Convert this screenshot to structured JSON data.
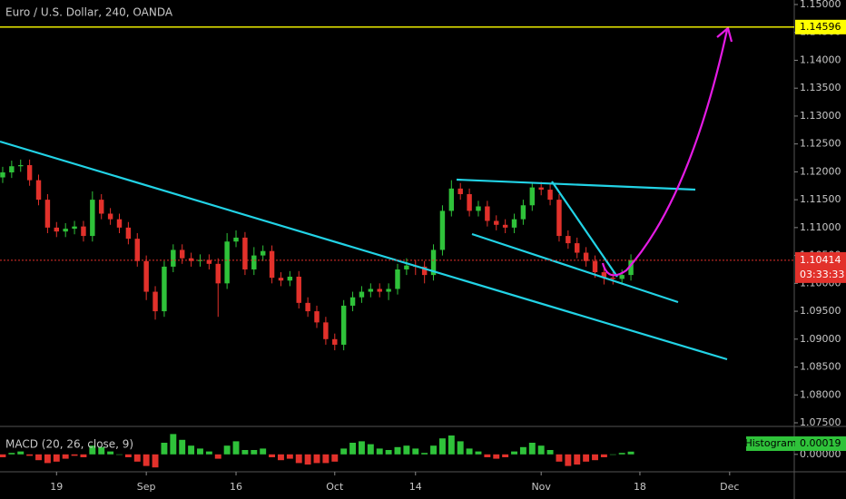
{
  "chart_data": [
    {
      "type": "candlestick",
      "title": "Euro / U.S. Dollar, 240, OANDA",
      "x": [
        -6,
        -5,
        -4,
        -3,
        -2,
        -1,
        0,
        1,
        2,
        3,
        4,
        5,
        6,
        7,
        8,
        9,
        10,
        11,
        12,
        13,
        14,
        15,
        16,
        17,
        18,
        19,
        20,
        21,
        22,
        23,
        24,
        25,
        26,
        27,
        28,
        29,
        30,
        31,
        32,
        33,
        34,
        35,
        36,
        37,
        38,
        39,
        40,
        41,
        42,
        43,
        44,
        45,
        46,
        47,
        48,
        49,
        50,
        51,
        52,
        53,
        54,
        55,
        56,
        57,
        58,
        59,
        60,
        61,
        62,
        63,
        64
      ],
      "open": [
        1.119,
        1.1199,
        1.121,
        1.1212,
        1.1185,
        1.115,
        1.11,
        1.1093,
        1.1098,
        1.1102,
        1.1085,
        1.115,
        1.1125,
        1.1115,
        1.11,
        1.108,
        1.104,
        1.0985,
        1.095,
        1.103,
        1.106,
        1.1045,
        1.104,
        1.1042,
        1.1035,
        1.1,
        1.1075,
        1.1082,
        1.1025,
        1.105,
        1.1058,
        1.101,
        1.1005,
        1.1012,
        1.0965,
        1.095,
        1.093,
        1.09,
        1.089,
        1.096,
        1.0975,
        1.0985,
        1.099,
        1.0985,
        1.099,
        1.1025,
        1.1032,
        1.103,
        1.1015,
        1.106,
        1.113,
        1.117,
        1.116,
        1.113,
        1.1138,
        1.1112,
        1.1105,
        1.11,
        1.1115,
        1.114,
        1.1172,
        1.1168,
        1.115,
        1.1085,
        1.1072,
        1.1055,
        1.104,
        1.102,
        1.101,
        1.1008,
        1.1015
      ],
      "high": [
        1.1209,
        1.122,
        1.1222,
        1.1222,
        1.1195,
        1.116,
        1.111,
        1.1108,
        1.1112,
        1.1112,
        1.1165,
        1.116,
        1.1135,
        1.1125,
        1.111,
        1.109,
        1.105,
        1.0995,
        1.104,
        1.107,
        1.107,
        1.1055,
        1.1052,
        1.1052,
        1.1045,
        1.109,
        1.1095,
        1.1092,
        1.1065,
        1.1068,
        1.1068,
        1.102,
        1.1022,
        1.1022,
        1.0975,
        1.096,
        1.094,
        1.091,
        1.097,
        1.0985,
        1.0995,
        1.1,
        1.1,
        1.1,
        1.1035,
        1.1045,
        1.1042,
        1.104,
        1.107,
        1.114,
        1.1185,
        1.118,
        1.117,
        1.1148,
        1.1148,
        1.1122,
        1.1115,
        1.1125,
        1.115,
        1.1182,
        1.1182,
        1.1178,
        1.116,
        1.1095,
        1.1082,
        1.1065,
        1.105,
        1.103,
        1.102,
        1.1025,
        1.1052
      ],
      "low": [
        1.118,
        1.1189,
        1.12,
        1.1175,
        1.114,
        1.109,
        1.1083,
        1.1083,
        1.1088,
        1.1075,
        1.1075,
        1.1115,
        1.1105,
        1.109,
        1.107,
        1.103,
        1.097,
        1.0935,
        1.094,
        1.102,
        1.1035,
        1.103,
        1.103,
        1.1025,
        1.094,
        1.099,
        1.1065,
        1.1015,
        1.1015,
        1.104,
        1.1,
        1.0995,
        1.0995,
        1.0955,
        1.094,
        1.092,
        1.089,
        1.088,
        1.088,
        1.095,
        1.0965,
        1.0975,
        1.0975,
        1.097,
        1.098,
        1.1015,
        1.1015,
        1.1,
        1.1005,
        1.105,
        1.112,
        1.115,
        1.112,
        1.112,
        1.1102,
        1.1095,
        1.109,
        1.109,
        1.1105,
        1.113,
        1.1158,
        1.114,
        1.1075,
        1.1062,
        1.1045,
        1.103,
        1.101,
        1.0998,
        1.0998,
        1.0998,
        1.1005
      ],
      "close": [
        1.1199,
        1.121,
        1.1212,
        1.1185,
        1.115,
        1.11,
        1.1093,
        1.1098,
        1.1102,
        1.1085,
        1.115,
        1.1125,
        1.1115,
        1.11,
        1.108,
        1.104,
        1.0985,
        1.095,
        1.103,
        1.106,
        1.1045,
        1.104,
        1.1042,
        1.1035,
        1.1,
        1.1075,
        1.1082,
        1.1025,
        1.105,
        1.1058,
        1.101,
        1.1005,
        1.1012,
        1.0965,
        1.095,
        1.093,
        1.09,
        1.089,
        1.096,
        1.0975,
        1.0985,
        1.099,
        1.0985,
        1.099,
        1.1025,
        1.1032,
        1.103,
        1.1015,
        1.106,
        1.113,
        1.117,
        1.116,
        1.113,
        1.1138,
        1.1112,
        1.1105,
        1.11,
        1.1115,
        1.114,
        1.1172,
        1.1168,
        1.115,
        1.1085,
        1.1072,
        1.1055,
        1.104,
        1.102,
        1.101,
        1.1008,
        1.1015,
        1.10414
      ],
      "up_color": "#2fc23a",
      "down_color": "#e2312b",
      "xlim": [
        -6.3,
        82.2
      ],
      "ylim": [
        1.07435,
        1.15081
      ],
      "xticks": [
        {
          "value": 0,
          "label": "19"
        },
        {
          "value": 10,
          "label": "Sep"
        },
        {
          "value": 20,
          "label": "16"
        },
        {
          "value": 31,
          "label": "Oct"
        },
        {
          "value": 40,
          "label": "14"
        },
        {
          "value": 54,
          "label": "Nov"
        },
        {
          "value": 65,
          "label": "18"
        },
        {
          "value": 75,
          "label": "Dec"
        }
      ],
      "yticks": [
        {
          "value": 1.075,
          "label": "1.07500"
        },
        {
          "value": 1.08,
          "label": "1.08000"
        },
        {
          "value": 1.085,
          "label": "1.08500"
        },
        {
          "value": 1.09,
          "label": "1.09000"
        },
        {
          "value": 1.095,
          "label": "1.09500"
        },
        {
          "value": 1.1,
          "label": "1.10000"
        },
        {
          "value": 1.105,
          "label": "1.10500"
        },
        {
          "value": 1.11,
          "label": "1.11000"
        },
        {
          "value": 1.115,
          "label": "1.11500"
        },
        {
          "value": 1.12,
          "label": "1.12000"
        },
        {
          "value": 1.125,
          "label": "1.12500"
        },
        {
          "value": 1.13,
          "label": "1.13000"
        },
        {
          "value": 1.135,
          "label": "1.13500"
        },
        {
          "value": 1.14,
          "label": "1.14000"
        },
        {
          "value": 1.145,
          "label": "1.14500"
        },
        {
          "value": 1.15,
          "label": "1.15000"
        }
      ],
      "price_lines": [
        {
          "value": 1.14596,
          "color": "#ffff00"
        }
      ],
      "countdown": "03:33:33"
    },
    {
      "type": "bar",
      "title": "MACD (20, 26, close, 9)",
      "x": [
        -6,
        -5,
        -4,
        -3,
        -2,
        -1,
        0,
        1,
        2,
        3,
        4,
        5,
        6,
        7,
        8,
        9,
        10,
        11,
        12,
        13,
        14,
        15,
        16,
        17,
        18,
        19,
        20,
        21,
        22,
        23,
        24,
        25,
        26,
        27,
        28,
        29,
        30,
        31,
        32,
        33,
        34,
        35,
        36,
        37,
        38,
        39,
        40,
        41,
        42,
        43,
        44,
        45,
        46,
        47,
        48,
        49,
        50,
        51,
        52,
        53,
        54,
        55,
        56,
        57,
        58,
        59,
        60,
        61,
        62,
        63,
        64
      ],
      "series": [
        {
          "name": "Histogram",
          "color": "#2fc23a",
          "values": [
            -0.0002,
            0.0001,
            0.0002,
            -0.0001,
            -0.0004,
            -0.0006,
            -0.0005,
            -0.0003,
            -0.0001,
            -0.0002,
            0.0006,
            0.0005,
            0.0002,
            0.0,
            -0.0002,
            -0.0005,
            -0.0008,
            -0.0009,
            0.0008,
            0.0014,
            0.001,
            0.0006,
            0.0004,
            0.0002,
            -0.0003,
            0.0006,
            0.0009,
            0.0003,
            0.0003,
            0.0004,
            -0.0002,
            -0.0004,
            -0.0003,
            -0.0006,
            -0.0007,
            -0.0006,
            -0.0006,
            -0.0005,
            0.0004,
            0.0008,
            0.0009,
            0.0007,
            0.0004,
            0.0003,
            0.0005,
            0.0006,
            0.0004,
            0.0001,
            0.0006,
            0.0011,
            0.0013,
            0.0009,
            0.0004,
            0.0002,
            -0.0002,
            -0.0003,
            -0.0002,
            0.0002,
            0.0005,
            0.0008,
            0.0006,
            0.0003,
            -0.0005,
            -0.0008,
            -0.0007,
            -0.0005,
            -0.0004,
            -0.0002,
            0.0,
            0.0001,
            0.00019
          ]
        }
      ],
      "down_color": "#e2312b",
      "xlim": [
        -6.3,
        82.2
      ],
      "ylim": [
        -0.0012,
        0.0018
      ],
      "yticks": [
        {
          "value": 0,
          "label": "0.00000"
        }
      ]
    }
  ]
}
